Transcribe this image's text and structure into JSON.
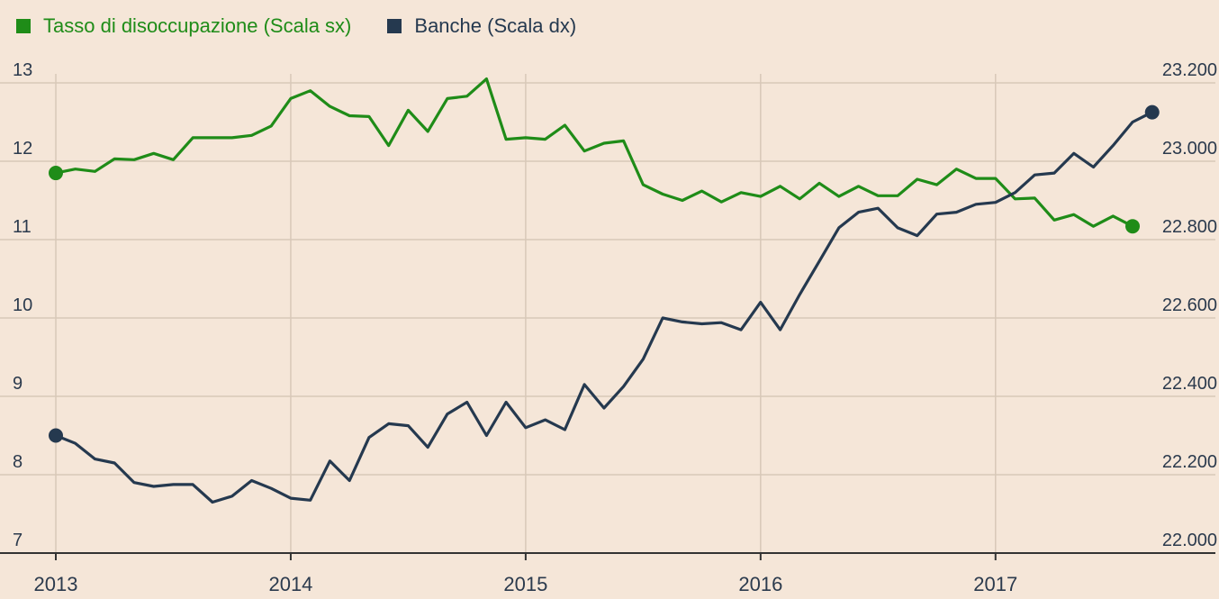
{
  "chart_data": {
    "type": "line",
    "title": "",
    "xlabel": "",
    "colors": {
      "unemployment": "#1f8c18",
      "banks": "#25394f",
      "grid": "#d8c8b8",
      "axis": "#333333"
    },
    "x_ticks": [
      "2013",
      "2014",
      "2015",
      "2016",
      "2017"
    ],
    "y_left": {
      "label": "Scala sx",
      "ylim": [
        7,
        13
      ],
      "ticks": [
        "7",
        "8",
        "9",
        "10",
        "11",
        "12",
        "13"
      ]
    },
    "y_right": {
      "label": "Scala dx",
      "ylim": [
        22000,
        23200
      ],
      "ticks": [
        "22.000",
        "22.200",
        "22.400",
        "22.600",
        "22.800",
        "23.000",
        "23.200"
      ]
    },
    "legend": [
      {
        "name": "Tasso di disoccupazione (Scala sx)",
        "color": "#1f8c18"
      },
      {
        "name": "Banche (Scala dx)",
        "color": "#25394f"
      }
    ],
    "x_start": 2013.0,
    "x_step_months": 1,
    "series": [
      {
        "name": "Tasso di disoccupazione",
        "axis": "left",
        "values": [
          11.85,
          11.9,
          11.87,
          12.03,
          12.02,
          12.1,
          12.02,
          12.3,
          12.3,
          12.3,
          12.33,
          12.45,
          12.8,
          12.9,
          12.7,
          12.58,
          12.57,
          12.2,
          12.65,
          12.38,
          12.8,
          12.83,
          13.05,
          12.28,
          12.3,
          12.28,
          12.46,
          12.13,
          12.23,
          12.26,
          11.7,
          11.58,
          11.5,
          11.62,
          11.48,
          11.6,
          11.55,
          11.68,
          11.52,
          11.72,
          11.55,
          11.68,
          11.56,
          11.56,
          11.77,
          11.7,
          11.9,
          11.78,
          11.78,
          11.52,
          11.53,
          11.25,
          11.32,
          11.17,
          11.3,
          11.17
        ]
      },
      {
        "name": "Banche",
        "axis": "right",
        "values": [
          22300,
          22280,
          22240,
          22230,
          22180,
          22170,
          22175,
          22175,
          22130,
          22145,
          22185,
          22165,
          22140,
          22135,
          22235,
          22185,
          22295,
          22330,
          22325,
          22270,
          22355,
          22385,
          22300,
          22385,
          22320,
          22340,
          22315,
          22430,
          22370,
          22425,
          22495,
          22600,
          22590,
          22585,
          22588,
          22570,
          22640,
          22570,
          22660,
          22745,
          22830,
          22870,
          22880,
          22830,
          22810,
          22865,
          22870,
          22890,
          22895,
          22920,
          22965,
          22970,
          23020,
          22985,
          23040,
          23100,
          23125
        ]
      }
    ]
  }
}
